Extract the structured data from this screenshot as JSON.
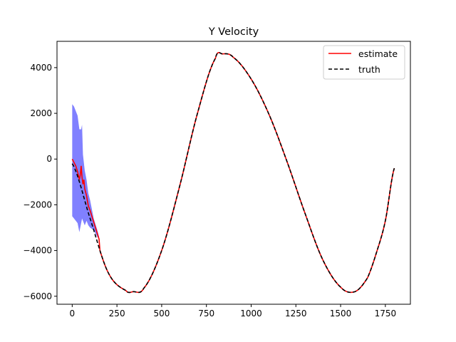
{
  "chart_data": {
    "type": "line",
    "title": "Y Velocity",
    "xlabel": "",
    "ylabel": "",
    "xlim": [
      -85,
      1890
    ],
    "ylim": [
      -6350,
      5150
    ],
    "xticks": [
      0,
      250,
      500,
      750,
      1000,
      1250,
      1500,
      1750
    ],
    "yticks": [
      -6000,
      -4000,
      -2000,
      0,
      2000,
      4000
    ],
    "grid": false,
    "legend": {
      "placement": "top-right",
      "entries": [
        "estimate",
        "truth"
      ]
    },
    "colors": {
      "estimate": "#ff0000",
      "truth": "#000000",
      "band": "#8080ff"
    },
    "truth_model": {
      "amplitude": 5200,
      "offset": -600,
      "period": 1490,
      "phase": -0.15,
      "x_start": 0,
      "x_end": 1800
    },
    "series": [
      {
        "name": "estimate",
        "x": [
          0,
          10,
          20,
          30,
          40,
          45,
          50,
          55,
          60,
          65,
          70,
          80,
          90,
          100,
          110,
          120,
          130,
          140,
          150
        ],
        "values": [
          0,
          -150,
          -300,
          -550,
          -900,
          -700,
          -300,
          -800,
          -1100,
          -900,
          -1300,
          -1600,
          -2050,
          -2250,
          -2500,
          -2750,
          -3000,
          -3250,
          -3500
        ]
      },
      {
        "name": "truth",
        "x": [
          0,
          100,
          200,
          300,
          340,
          400,
          500,
          600,
          700,
          800,
          840,
          900,
          1000,
          1100,
          1200,
          1300,
          1400,
          1500,
          1580,
          1650,
          1700,
          1750,
          1800
        ],
        "values": [
          -200,
          -2600,
          -4950,
          -5750,
          -5800,
          -5650,
          -4000,
          -1200,
          2000,
          4400,
          4600,
          4450,
          3500,
          1950,
          -100,
          -2350,
          -4400,
          -5600,
          -5800,
          -5200,
          -4100,
          -2700,
          -400
        ]
      }
    ],
    "uncertainty_band": {
      "x": [
        0,
        10,
        20,
        30,
        40,
        50,
        55,
        60,
        70,
        80,
        90,
        100,
        120,
        140,
        150
      ],
      "upper": [
        2400,
        2300,
        2100,
        1900,
        1300,
        1300,
        1500,
        200,
        -500,
        -900,
        -1500,
        -1800,
        -2600,
        -3100,
        -3400
      ],
      "lower": [
        -2500,
        -2600,
        -2700,
        -2800,
        -3200,
        -2800,
        -2600,
        -2700,
        -2900,
        -2700,
        -2900,
        -3000,
        -3100,
        -3400,
        -3500
      ]
    }
  }
}
